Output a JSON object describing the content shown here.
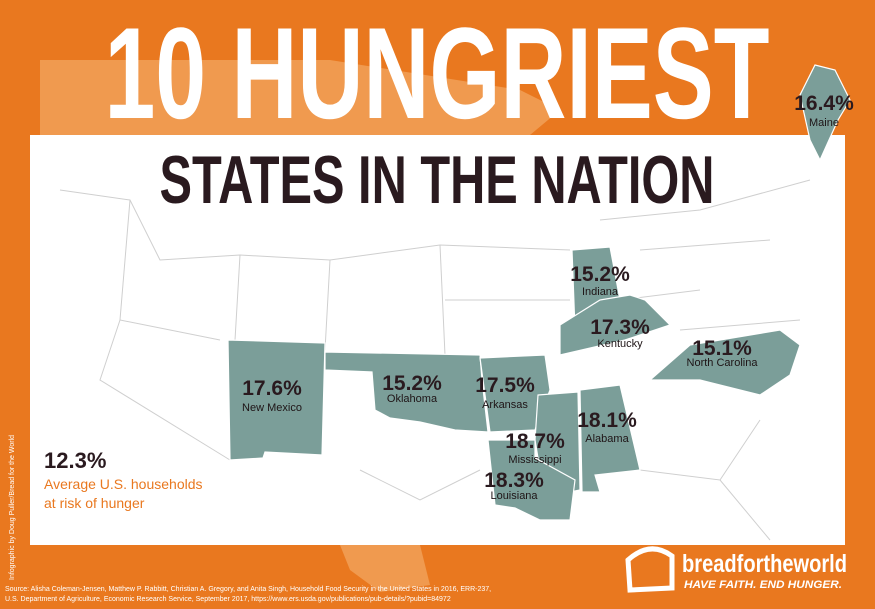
{
  "header": {
    "title": "10 HUNGRIEST",
    "subtitle": "STATES IN THE NATION"
  },
  "states": [
    {
      "name": "Maine",
      "value": "16.4%"
    },
    {
      "name": "Indiana",
      "value": "15.2%"
    },
    {
      "name": "Kentucky",
      "value": "17.3%"
    },
    {
      "name": "North Carolina",
      "value": "15.1%"
    },
    {
      "name": "New Mexico",
      "value": "17.6%"
    },
    {
      "name": "Oklahoma",
      "value": "15.2%"
    },
    {
      "name": "Arkansas",
      "value": "17.5%"
    },
    {
      "name": "Alabama",
      "value": "18.1%"
    },
    {
      "name": "Mississippi",
      "value": "18.7%"
    },
    {
      "name": "Louisiana",
      "value": "18.3%"
    }
  ],
  "average": {
    "value": "12.3%",
    "label_line1": "Average U.S. households",
    "label_line2": "at risk of hunger"
  },
  "credit": "Infographic by Doug Puller/Bread for the World",
  "source": {
    "line1": "Source: Alisha Coleman-Jensen, Matthew P. Rabbitt, Christian A. Gregory, and Anita Singh, Household Food Security in the United States in 2016, ERR-237,",
    "line2": "U.S. Department of Agriculture, Economic Research Service, September 2017, https://www.ers.usda.gov/publications/pub-details/?pubid=84972"
  },
  "logo": {
    "name": "breadfortheworld",
    "tagline": "HAVE FAITH. END HUNGER."
  }
}
